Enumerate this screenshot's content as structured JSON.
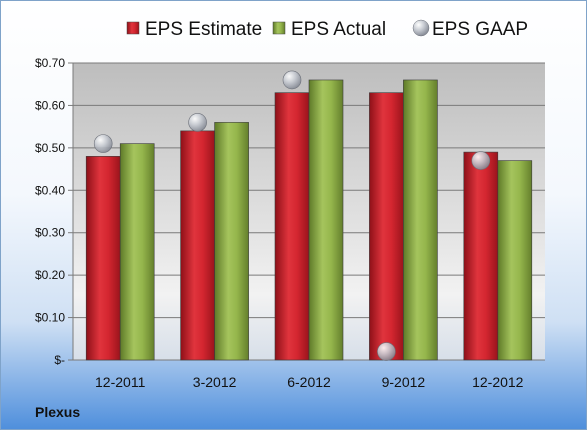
{
  "chart_data": {
    "type": "bar",
    "categories": [
      "12-2011",
      "3-2012",
      "6-2012",
      "9-2012",
      "12-2012"
    ],
    "series": [
      {
        "name": "EPS Estimate",
        "type": "bar",
        "color": "#cc1f2a",
        "values": [
          0.48,
          0.54,
          0.63,
          0.63,
          0.49
        ]
      },
      {
        "name": "EPS Actual",
        "type": "bar",
        "color": "#8fb04a",
        "values": [
          0.51,
          0.56,
          0.66,
          0.66,
          0.47
        ]
      },
      {
        "name": "EPS GAAP",
        "type": "scatter",
        "color": "#b8bcc4",
        "values": [
          0.51,
          0.56,
          0.66,
          0.02,
          0.47
        ]
      }
    ],
    "y_ticks": [
      {
        "value": 0.0,
        "label": "$-"
      },
      {
        "value": 0.1,
        "label": "$0.10"
      },
      {
        "value": 0.2,
        "label": "$0.20"
      },
      {
        "value": 0.3,
        "label": "$0.30"
      },
      {
        "value": 0.4,
        "label": "$0.40"
      },
      {
        "value": 0.5,
        "label": "$0.50"
      },
      {
        "value": 0.6,
        "label": "$0.60"
      },
      {
        "value": 0.7,
        "label": "$0.70"
      }
    ],
    "ylim": [
      0,
      0.7
    ],
    "grid": true,
    "legend_position": "top",
    "title": "",
    "xlabel": "",
    "ylabel": ""
  },
  "company_label": "Plexus"
}
